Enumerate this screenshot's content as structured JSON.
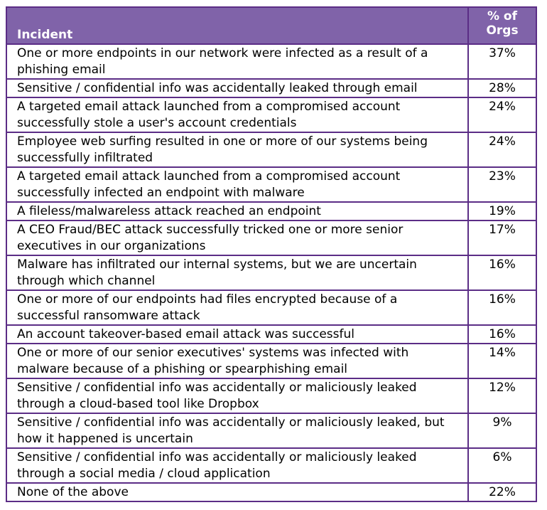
{
  "table": {
    "headers": {
      "incident": "Incident",
      "pct_line1": "% of",
      "pct_line2": "Orgs"
    },
    "rows": [
      {
        "incident": "One or more endpoints in our network were infected as a result of a phishing email",
        "pct": "37%"
      },
      {
        "incident": "Sensitive / confidential info was accidentally leaked through email",
        "pct": "28%"
      },
      {
        "incident": "A targeted email attack launched from a compromised account successfully stole a user's account credentials",
        "pct": "24%"
      },
      {
        "incident": "Employee web surfing resulted in one or more of our systems being successfully infiltrated",
        "pct": "24%"
      },
      {
        "incident": "A targeted email attack launched from a compromised account successfully infected an endpoint with malware",
        "pct": "23%"
      },
      {
        "incident": "A fileless/malwareless attack reached an endpoint",
        "pct": "19%"
      },
      {
        "incident": "A CEO Fraud/BEC attack successfully tricked one or more senior executives in our organizations",
        "pct": "17%"
      },
      {
        "incident": "Malware has infiltrated our internal systems, but we are uncertain through which channel",
        "pct": "16%"
      },
      {
        "incident": "One or more of our endpoints had files encrypted because of a successful ransomware attack",
        "pct": "16%"
      },
      {
        "incident": "An account takeover-based email attack was successful",
        "pct": "16%"
      },
      {
        "incident": "One or more of our senior executives' systems was infected with malware because of a phishing or spearphishing email",
        "pct": "14%"
      },
      {
        "incident": "Sensitive / confidential info was accidentally or maliciously leaked through a cloud-based tool like Dropbox",
        "pct": "12%"
      },
      {
        "incident": "Sensitive / confidential info was accidentally or maliciously leaked, but how it happened is uncertain",
        "pct": "9%"
      },
      {
        "incident": "Sensitive / confidential info was accidentally or maliciously leaked through a social media / cloud application",
        "pct": "6%"
      },
      {
        "incident": "None of the above",
        "pct": "22%"
      }
    ]
  }
}
